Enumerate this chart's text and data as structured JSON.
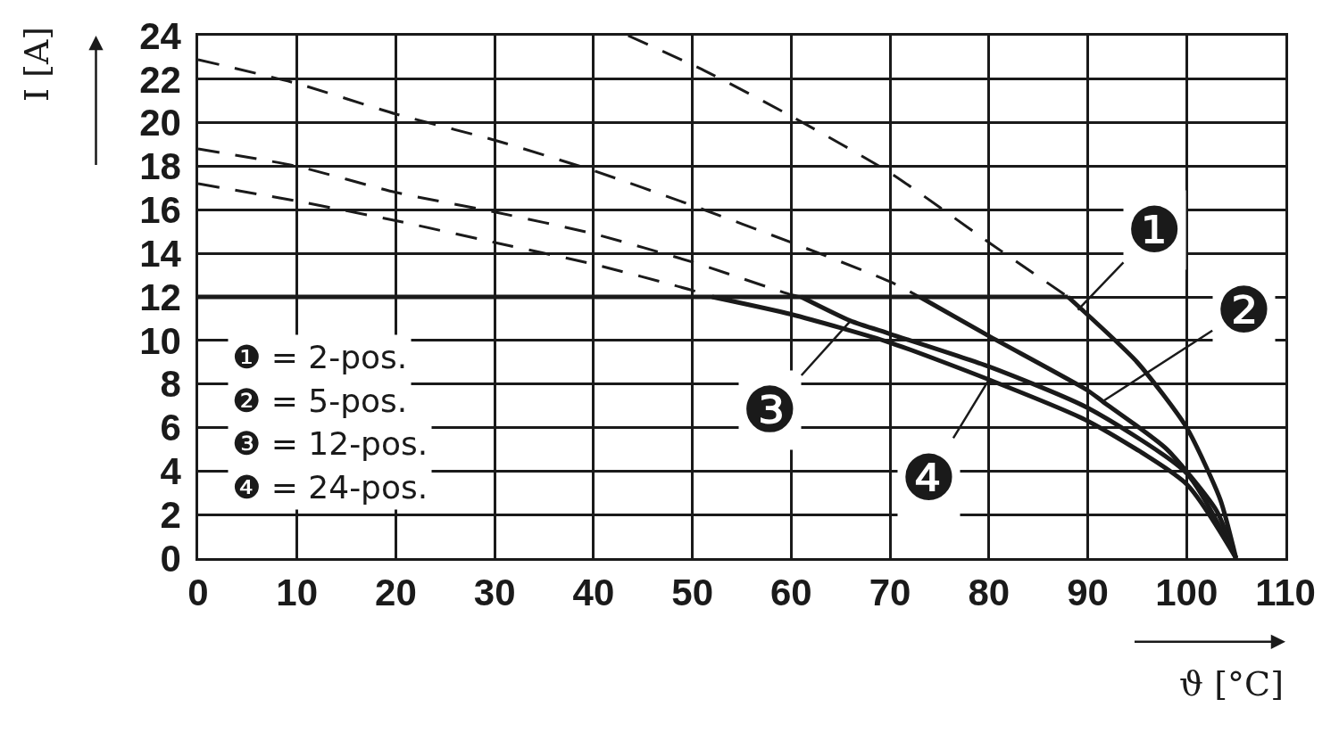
{
  "chart_data": {
    "type": "line",
    "xlabel": "ϑ [°C]",
    "ylabel": "I [A]",
    "xlim": [
      0,
      110
    ],
    "xticks": [
      0,
      10,
      20,
      30,
      40,
      50,
      60,
      70,
      80,
      90,
      100,
      110
    ],
    "ylim": [
      0,
      24
    ],
    "yticks": [
      0,
      2,
      4,
      6,
      8,
      10,
      12,
      14,
      16,
      18,
      20,
      22,
      24
    ],
    "grid": true,
    "series": [
      {
        "color": "#1a1a1a",
        "line_style": "dashed",
        "x": [
          43.5,
          51.2,
          60,
          70,
          80,
          88
        ],
        "values": [
          24,
          22.4,
          20.3,
          17.7,
          14.5,
          12
        ]
      },
      {
        "color": "#1a1a1a",
        "line_style": "dashed",
        "x": [
          0,
          10,
          20,
          30,
          40,
          50,
          60,
          70,
          73
        ],
        "values": [
          22.9,
          21.8,
          20.4,
          19.2,
          17.8,
          16.2,
          14.5,
          12.7,
          12
        ]
      },
      {
        "color": "#1a1a1a",
        "line_style": "dashed",
        "x": [
          0,
          10,
          20,
          30,
          40,
          50,
          60,
          61
        ],
        "values": [
          18.8,
          18,
          16.8,
          15.9,
          14.9,
          13.6,
          12.1,
          12
        ]
      },
      {
        "color": "#1a1a1a",
        "line_style": "dashed",
        "x": [
          0,
          10,
          20,
          30,
          40,
          50,
          52
        ],
        "values": [
          17.2,
          16.4,
          15.5,
          14.5,
          13.5,
          12.3,
          12
        ]
      },
      {
        "color": "#1a1a1a",
        "line_style": "solid",
        "x": [
          0,
          88
        ],
        "values": [
          12,
          12
        ]
      },
      {
        "color": "#1a1a1a",
        "line_style": "solid",
        "x": [
          88,
          95,
          100,
          103.4,
          105
        ],
        "values": [
          12,
          9,
          6,
          2.7,
          0
        ]
      },
      {
        "color": "#1a1a1a",
        "line_style": "solid",
        "x": [
          73,
          80,
          90,
          91.5,
          98,
          103,
          105
        ],
        "values": [
          12,
          10.2,
          7.7,
          7.2,
          5,
          2.2,
          0
        ]
      },
      {
        "color": "#1a1a1a",
        "line_style": "solid",
        "x": [
          61,
          66,
          70,
          80,
          90,
          100,
          105
        ],
        "values": [
          12,
          10.9,
          10.3,
          8.8,
          6.9,
          3.9,
          0
        ]
      },
      {
        "color": "#1a1a1a",
        "line_style": "solid",
        "x": [
          52,
          60,
          70,
          80,
          90,
          100,
          105
        ],
        "values": [
          12,
          11.2,
          9.9,
          8.2,
          6.3,
          3.4,
          0
        ]
      }
    ],
    "annotations": [
      {
        "text": "❶",
        "x": 89,
        "y": 11.4
      },
      {
        "text": "❷",
        "x": 91.5,
        "y": 7.2
      },
      {
        "text": "❸",
        "x": 66,
        "y": 10.9
      },
      {
        "text": "❹",
        "x": 80,
        "y": 8.2
      },
      "❶ = 2-pos.",
      "❷ = 5-pos.",
      "❸ = 12-pos.",
      "❹ = 24-pos."
    ]
  }
}
